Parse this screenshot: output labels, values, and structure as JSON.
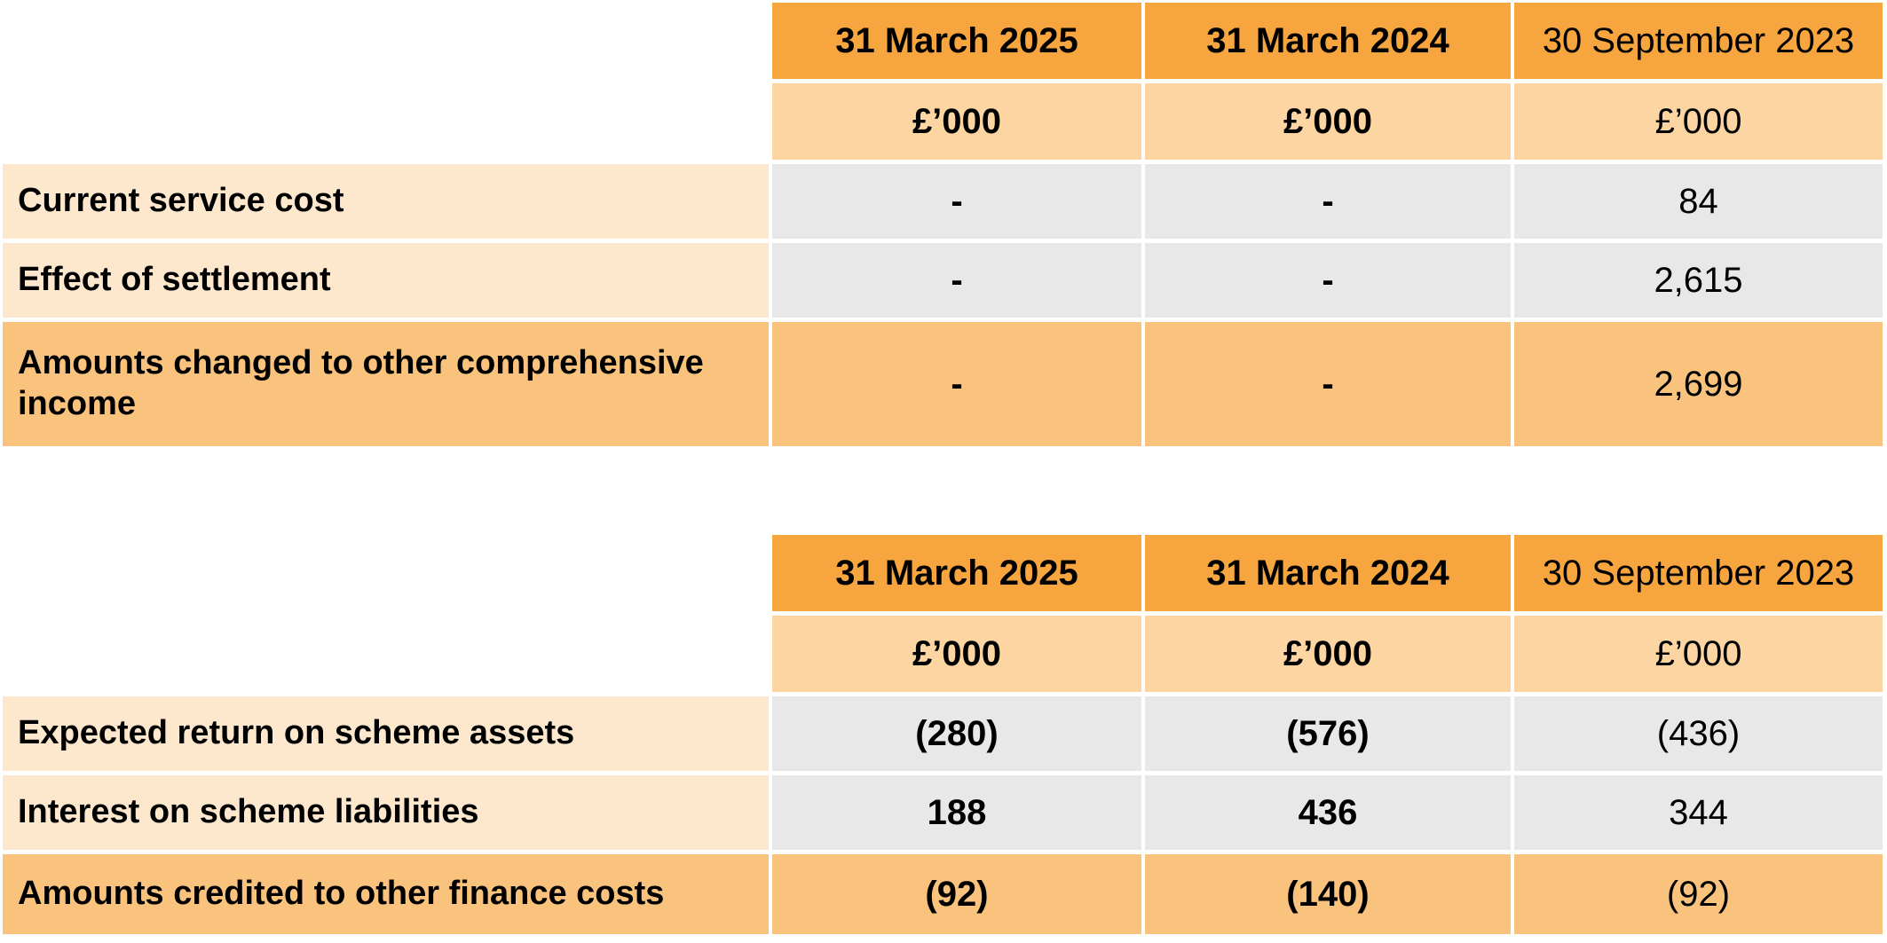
{
  "colors": {
    "header_orange": "#F7A53E",
    "unit_peach": "#FCD5A2",
    "label_light": "#FDE8CE",
    "band_orange": "#F9C37E",
    "cell_gray": "#E9E8E8",
    "text": "#000000",
    "page_background": "#FFFFFF"
  },
  "tables": [
    {
      "name": "pension-cost-table",
      "columns": [
        "31 March 2025",
        "31 March 2024",
        "30 September 2023"
      ],
      "units": [
        "£’000",
        "£’000",
        "£’000"
      ],
      "rows": [
        {
          "label": "Current service cost",
          "v1": "-",
          "v2": "-",
          "v3": "84"
        },
        {
          "label": "Effect of settlement",
          "v1": "-",
          "v2": "-",
          "v3": "2,615"
        },
        {
          "label": "Amounts changed to other comprehensive income",
          "v1": "-",
          "v2": "-",
          "v3": "2,699"
        }
      ]
    },
    {
      "name": "finance-costs-table",
      "columns": [
        "31 March 2025",
        "31 March 2024",
        "30 September 2023"
      ],
      "units": [
        "£’000",
        "£’000",
        "£’000"
      ],
      "rows": [
        {
          "label": "Expected return on scheme assets",
          "v1": "(280)",
          "v2": "(576)",
          "v3": "(436)"
        },
        {
          "label": "Interest on scheme liabilities",
          "v1": "188",
          "v2": "436",
          "v3": "344"
        },
        {
          "label": "Amounts credited to other finance costs",
          "v1": "(92)",
          "v2": "(140)",
          "v3": "(92)"
        }
      ]
    }
  ]
}
